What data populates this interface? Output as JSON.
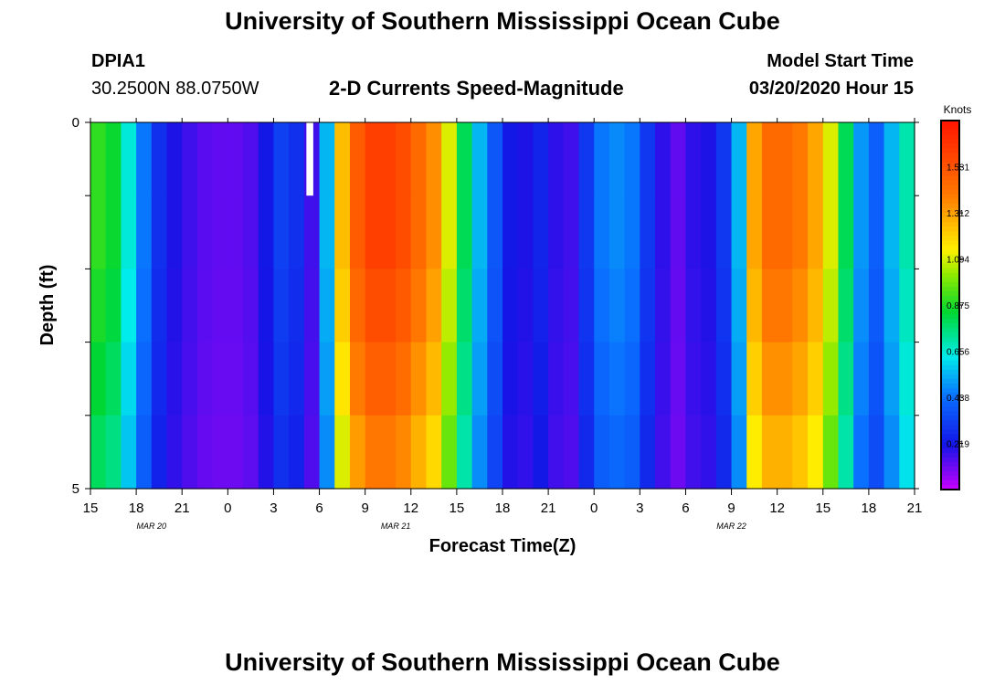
{
  "page": {
    "title_top": "University of Southern Mississippi Ocean Cube",
    "title_bottom": "University of Southern Mississippi Ocean Cube",
    "station_id": "DPIA1",
    "station_coords": "30.2500N 88.0750W",
    "plot_title": "2-D Currents Speed-Magnitude",
    "model_start_label": "Model Start Time",
    "model_start_value": "03/20/2020 Hour 15"
  },
  "chart_data": {
    "type": "heatmap",
    "title": "2-D Currents Speed-Magnitude",
    "xlabel": "Forecast Time(Z)",
    "ylabel": "Depth (ft)",
    "x_tick_labels": [
      "15",
      "18",
      "21",
      "0",
      "3",
      "6",
      "9",
      "12",
      "15",
      "18",
      "21",
      "0",
      "3",
      "6",
      "9",
      "12",
      "15",
      "18",
      "21"
    ],
    "x_date_labels": [
      {
        "label": "MAR 20",
        "hour_index": 4
      },
      {
        "label": "MAR 21",
        "hour_index": 20
      },
      {
        "label": "MAR 22",
        "hour_index": 42
      }
    ],
    "y_tick_labels": [
      "0",
      "5"
    ],
    "ylim": [
      0,
      5
    ],
    "hours_span": 54,
    "depth_rows": 5,
    "colorbar": {
      "unit": "Knots",
      "ticks": [
        "1.531",
        "1.312",
        "1.094",
        "0.875",
        "0.656",
        "0.438",
        "0.219"
      ],
      "min": 0.0,
      "max": 1.75
    },
    "speed_profile_knots": [
      0.9,
      0.85,
      0.65,
      0.45,
      0.28,
      0.2,
      0.16,
      0.13,
      0.12,
      0.12,
      0.14,
      0.22,
      0.32,
      0.28,
      0.16,
      0.55,
      1.25,
      1.5,
      1.6,
      1.6,
      1.55,
      1.45,
      1.35,
      1.1,
      0.8,
      0.55,
      0.38,
      0.22,
      0.2,
      0.25,
      0.18,
      0.16,
      0.3,
      0.45,
      0.48,
      0.45,
      0.3,
      0.18,
      0.12,
      0.18,
      0.2,
      0.3,
      0.55,
      1.3,
      1.45,
      1.45,
      1.4,
      1.3,
      1.1,
      0.8,
      0.5,
      0.4,
      0.55,
      0.7
    ],
    "depth_factors": [
      1.0,
      1.0,
      0.97,
      0.93,
      0.88
    ],
    "annotations": [
      {
        "type": "white_marker",
        "hour": 14,
        "depth_row": 0
      }
    ]
  }
}
